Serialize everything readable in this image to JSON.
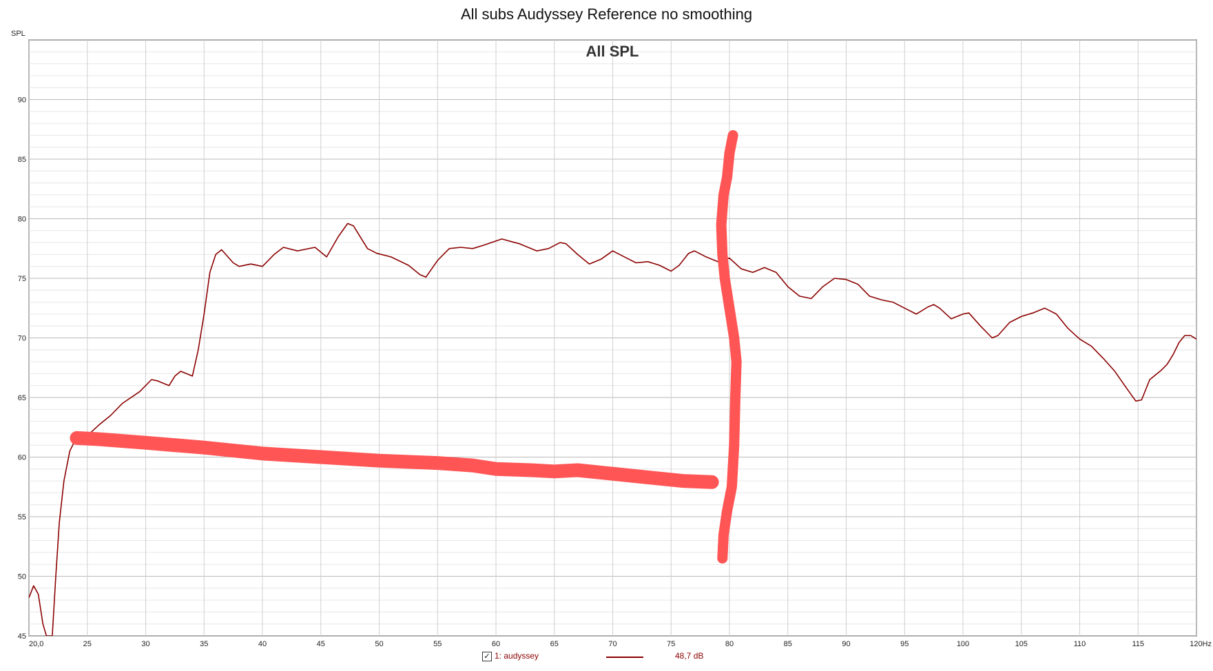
{
  "chart_data": {
    "type": "line",
    "title": "All subs Audyssey Reference no smoothing",
    "inner_title": "All SPL",
    "ylabel": "SPL",
    "x_unit": "Hz",
    "xlim": [
      20,
      120
    ],
    "ylim": [
      45,
      95
    ],
    "x_ticks": [
      "20,0",
      "25",
      "30",
      "35",
      "40",
      "45",
      "50",
      "55",
      "60",
      "65",
      "70",
      "75",
      "80",
      "85",
      "90",
      "95",
      "100",
      "105",
      "110",
      "115",
      "120Hz"
    ],
    "y_ticks": [
      "45",
      "50",
      "55",
      "60",
      "65",
      "70",
      "75",
      "80",
      "85",
      "90"
    ],
    "grid": true,
    "series": [
      {
        "name": "1: audyssey",
        "color": "#8b0000",
        "legend_value": "48,7 dB",
        "points": [
          [
            20.0,
            48.2
          ],
          [
            20.4,
            49.2
          ],
          [
            20.8,
            48.5
          ],
          [
            21.2,
            46.0
          ],
          [
            21.5,
            45.0
          ],
          [
            22.0,
            45.0
          ],
          [
            22.3,
            50.0
          ],
          [
            22.6,
            54.5
          ],
          [
            23.0,
            58.0
          ],
          [
            23.5,
            60.5
          ],
          [
            24.0,
            61.5
          ],
          [
            25.0,
            61.8
          ],
          [
            26.0,
            62.7
          ],
          [
            27.0,
            63.5
          ],
          [
            28.0,
            64.5
          ],
          [
            29.5,
            65.5
          ],
          [
            30.5,
            66.5
          ],
          [
            31.0,
            66.4
          ],
          [
            32.0,
            66.0
          ],
          [
            32.5,
            66.8
          ],
          [
            33.0,
            67.2
          ],
          [
            33.5,
            67.0
          ],
          [
            34.0,
            66.8
          ],
          [
            34.5,
            69.0
          ],
          [
            35.0,
            72.0
          ],
          [
            35.5,
            75.5
          ],
          [
            36.0,
            77.0
          ],
          [
            36.5,
            77.4
          ],
          [
            37.5,
            76.3
          ],
          [
            38.0,
            76.0
          ],
          [
            39.0,
            76.2
          ],
          [
            40.0,
            76.0
          ],
          [
            41.0,
            77.0
          ],
          [
            41.8,
            77.6
          ],
          [
            43.0,
            77.3
          ],
          [
            44.5,
            77.6
          ],
          [
            45.5,
            76.8
          ],
          [
            46.5,
            78.5
          ],
          [
            47.3,
            79.6
          ],
          [
            47.8,
            79.4
          ],
          [
            49.0,
            77.5
          ],
          [
            49.8,
            77.1
          ],
          [
            51.0,
            76.8
          ],
          [
            52.5,
            76.1
          ],
          [
            53.5,
            75.3
          ],
          [
            54.0,
            75.1
          ],
          [
            55.0,
            76.5
          ],
          [
            56.0,
            77.5
          ],
          [
            57.0,
            77.6
          ],
          [
            58.0,
            77.5
          ],
          [
            59.0,
            77.8
          ],
          [
            60.5,
            78.3
          ],
          [
            62.0,
            77.9
          ],
          [
            63.5,
            77.3
          ],
          [
            64.5,
            77.5
          ],
          [
            65.5,
            78.0
          ],
          [
            66.0,
            77.9
          ],
          [
            67.0,
            77.0
          ],
          [
            68.0,
            76.2
          ],
          [
            69.0,
            76.6
          ],
          [
            70.0,
            77.3
          ],
          [
            71.0,
            76.8
          ],
          [
            72.0,
            76.3
          ],
          [
            73.0,
            76.4
          ],
          [
            74.0,
            76.1
          ],
          [
            75.0,
            75.6
          ],
          [
            75.7,
            76.1
          ],
          [
            76.5,
            77.1
          ],
          [
            77.0,
            77.3
          ],
          [
            78.0,
            76.8
          ],
          [
            79.0,
            76.4
          ],
          [
            80.0,
            76.7
          ],
          [
            81.0,
            75.8
          ],
          [
            82.0,
            75.5
          ],
          [
            83.0,
            75.9
          ],
          [
            84.0,
            75.5
          ],
          [
            85.0,
            74.3
          ],
          [
            86.0,
            73.5
          ],
          [
            87.0,
            73.3
          ],
          [
            88.0,
            74.3
          ],
          [
            89.0,
            75.0
          ],
          [
            90.0,
            74.9
          ],
          [
            91.0,
            74.5
          ],
          [
            92.0,
            73.5
          ],
          [
            93.0,
            73.2
          ],
          [
            94.0,
            73.0
          ],
          [
            95.0,
            72.5
          ],
          [
            96.0,
            72.0
          ],
          [
            97.0,
            72.6
          ],
          [
            97.5,
            72.8
          ],
          [
            98.0,
            72.5
          ],
          [
            99.0,
            71.6
          ],
          [
            100.0,
            72.0
          ],
          [
            100.5,
            72.1
          ],
          [
            101.5,
            71.0
          ],
          [
            102.5,
            70.0
          ],
          [
            103.0,
            70.2
          ],
          [
            104.0,
            71.3
          ],
          [
            105.0,
            71.8
          ],
          [
            106.0,
            72.1
          ],
          [
            107.0,
            72.5
          ],
          [
            108.0,
            72.0
          ],
          [
            109.0,
            70.8
          ],
          [
            110.0,
            69.9
          ],
          [
            111.0,
            69.3
          ],
          [
            112.0,
            68.3
          ],
          [
            113.0,
            67.2
          ],
          [
            114.0,
            65.8
          ],
          [
            114.8,
            64.7
          ],
          [
            115.3,
            64.8
          ],
          [
            116.0,
            66.5
          ],
          [
            117.0,
            67.3
          ],
          [
            117.5,
            67.8
          ],
          [
            118.0,
            68.6
          ],
          [
            118.5,
            69.6
          ],
          [
            119.0,
            70.2
          ],
          [
            119.5,
            70.2
          ],
          [
            120.0,
            69.9
          ]
        ]
      }
    ],
    "annotations": [
      {
        "shape": "freehand-stroke",
        "color": "#ff5555",
        "points": [
          [
            24.1,
            61.6
          ],
          [
            26.0,
            61.5
          ],
          [
            30.0,
            61.2
          ],
          [
            35.0,
            60.8
          ],
          [
            40.0,
            60.3
          ],
          [
            45.0,
            60.0
          ],
          [
            50.0,
            59.7
          ],
          [
            55.0,
            59.5
          ],
          [
            58.0,
            59.3
          ],
          [
            60.0,
            59.0
          ],
          [
            63.0,
            58.9
          ],
          [
            65.0,
            58.8
          ],
          [
            67.0,
            58.9
          ],
          [
            70.0,
            58.6
          ],
          [
            73.0,
            58.3
          ],
          [
            76.0,
            58.0
          ],
          [
            78.5,
            57.9
          ]
        ]
      },
      {
        "shape": "freehand-stroke",
        "color": "#ff5555",
        "points": [
          [
            80.3,
            87.0
          ],
          [
            80.0,
            85.5
          ],
          [
            79.8,
            83.5
          ],
          [
            79.5,
            82.0
          ],
          [
            79.3,
            79.5
          ],
          [
            79.4,
            77.0
          ],
          [
            79.6,
            75.0
          ],
          [
            80.0,
            72.5
          ],
          [
            80.4,
            70.0
          ],
          [
            80.6,
            68.0
          ],
          [
            80.5,
            65.0
          ],
          [
            80.4,
            61.0
          ],
          [
            80.2,
            57.5
          ],
          [
            79.8,
            55.5
          ],
          [
            79.5,
            53.5
          ],
          [
            79.4,
            51.5
          ]
        ]
      }
    ]
  },
  "legend": {
    "checkbox_mark": "✓",
    "label": "1: audyssey",
    "value": "48,7 dB"
  }
}
